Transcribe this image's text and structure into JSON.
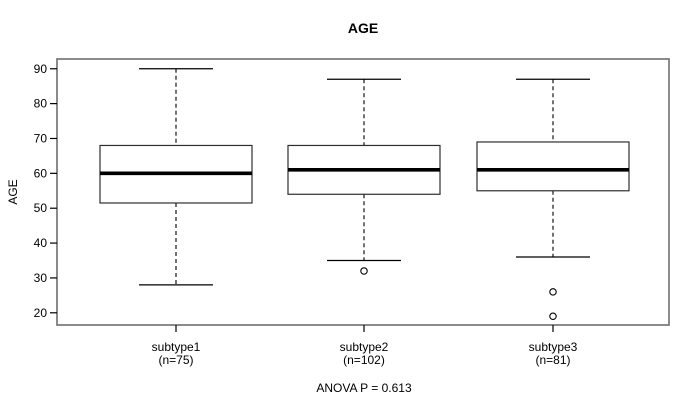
{
  "chart_data": {
    "type": "boxplot",
    "title": "AGE",
    "ylabel": "AGE",
    "xlabel": "",
    "footnote": "ANOVA P = 0.613",
    "ylim": [
      16.5,
      92.8
    ],
    "yticks": [
      20,
      30,
      40,
      50,
      60,
      70,
      80,
      90
    ],
    "grid": false,
    "categories": [
      "subtype1",
      "subtype2",
      "subtype3"
    ],
    "category_sublabels": [
      "(n=75)",
      "(n=102)",
      "(n=81)"
    ],
    "series": [
      {
        "name": "subtype1",
        "n": 75,
        "whisker_low": 28,
        "q1": 51.5,
        "median": 60,
        "q3": 68,
        "whisker_high": 90,
        "outliers": []
      },
      {
        "name": "subtype2",
        "n": 102,
        "whisker_low": 35,
        "q1": 54,
        "median": 61,
        "q3": 68,
        "whisker_high": 87,
        "outliers": [
          32
        ]
      },
      {
        "name": "subtype3",
        "n": 81,
        "whisker_low": 36,
        "q1": 55,
        "median": 61,
        "q3": 69,
        "whisker_high": 87,
        "outliers": [
          26,
          19
        ]
      }
    ],
    "colors": {
      "box_fill": "#ffffff",
      "line": "#000000",
      "frame": "#6e6e6e"
    }
  }
}
